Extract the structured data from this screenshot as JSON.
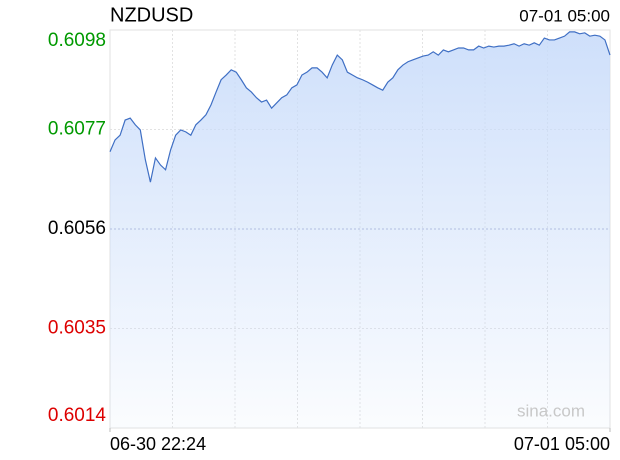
{
  "chart_data": {
    "type": "line",
    "title": "NZDUSD",
    "timestamp": "07-01 05:00",
    "watermark": "sina.com",
    "xlim": [
      0,
      396
    ],
    "xticks": [
      {
        "value": 0,
        "label": "06-30 22:24"
      },
      {
        "value": 396,
        "label": "07-01 05:00"
      }
    ],
    "ylim": [
      0.6014,
      0.6098
    ],
    "yticks": [
      0.6098,
      0.6077,
      0.6056,
      0.6035,
      0.6014
    ],
    "prev_close": 0.6056,
    "up_color": "#009900",
    "down_color": "#dd0000",
    "flat_color": "#000000",
    "grid": true,
    "x": [
      0,
      4,
      8,
      12,
      16,
      20,
      24,
      28,
      32,
      36,
      40,
      44,
      48,
      52,
      56,
      60,
      64,
      68,
      72,
      76,
      80,
      84,
      88,
      92,
      96,
      100,
      104,
      108,
      112,
      116,
      120,
      124,
      128,
      132,
      136,
      140,
      144,
      148,
      152,
      156,
      160,
      164,
      168,
      172,
      176,
      180,
      184,
      188,
      192,
      196,
      200,
      204,
      208,
      212,
      216,
      220,
      224,
      228,
      232,
      236,
      240,
      244,
      248,
      252,
      256,
      260,
      264,
      268,
      272,
      276,
      280,
      284,
      288,
      292,
      296,
      300,
      304,
      308,
      312,
      316,
      320,
      324,
      328,
      332,
      336,
      340,
      344,
      348,
      352,
      356,
      360,
      364,
      368,
      372,
      376,
      380,
      384,
      388,
      392,
      396
    ],
    "series": [
      {
        "color": "#3f6fc4",
        "fill": "#c9dcfa",
        "values": [
          0.60723,
          0.60748,
          0.60758,
          0.6079,
          0.60794,
          0.6078,
          0.60769,
          0.60706,
          0.60659,
          0.6071,
          0.60695,
          0.60685,
          0.60727,
          0.60758,
          0.60769,
          0.60765,
          0.60758,
          0.6078,
          0.6079,
          0.60801,
          0.60822,
          0.60849,
          0.60875,
          0.60885,
          0.60896,
          0.60891,
          0.60875,
          0.60858,
          0.60849,
          0.60837,
          0.60828,
          0.60832,
          0.60815,
          0.60826,
          0.60837,
          0.60843,
          0.60858,
          0.60864,
          0.60885,
          0.60891,
          0.609,
          0.609,
          0.60891,
          0.60879,
          0.60906,
          0.60927,
          0.60917,
          0.60891,
          0.60885,
          0.60879,
          0.60875,
          0.6087,
          0.60864,
          0.60858,
          0.60853,
          0.6087,
          0.60879,
          0.60896,
          0.60906,
          0.60913,
          0.60917,
          0.60921,
          0.60925,
          0.60927,
          0.60934,
          0.60927,
          0.60938,
          0.60934,
          0.60938,
          0.60942,
          0.60942,
          0.60938,
          0.60938,
          0.60946,
          0.60942,
          0.60946,
          0.60944,
          0.60946,
          0.60946,
          0.60948,
          0.60951,
          0.60946,
          0.60951,
          0.60948,
          0.60953,
          0.60948,
          0.60963,
          0.60959,
          0.60959,
          0.60963,
          0.60967,
          0.60976,
          0.60976,
          0.60972,
          0.60974,
          0.60967,
          0.60969,
          0.60967,
          0.60959,
          0.60927
        ]
      }
    ]
  }
}
